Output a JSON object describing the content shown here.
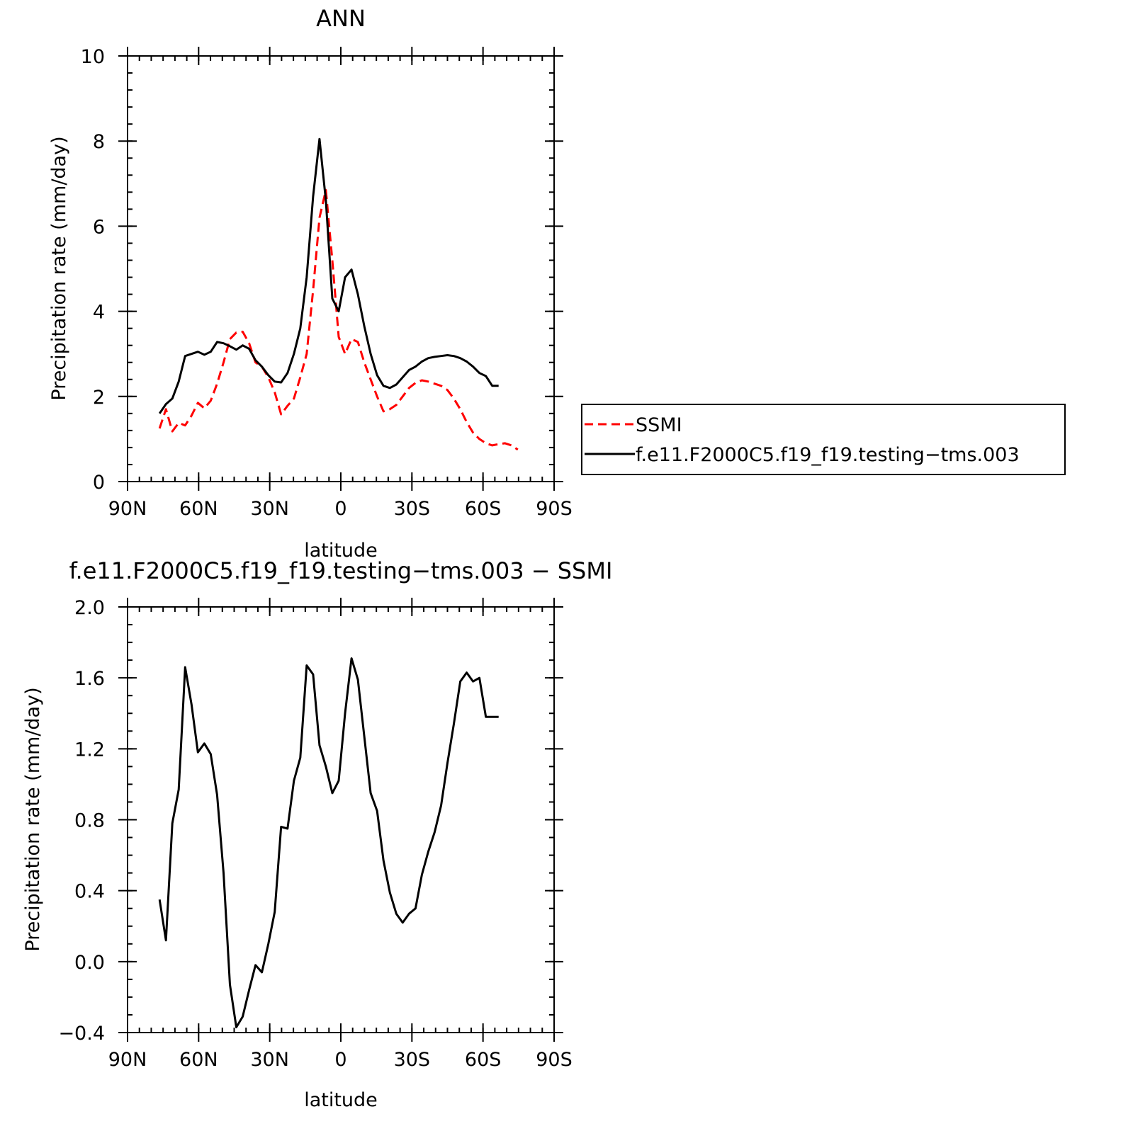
{
  "chart_data": [
    {
      "type": "line",
      "title": "ANN",
      "xlabel": "latitude",
      "ylabel": "Precipitation rate (mm/day)",
      "xlim": [
        -90,
        90
      ],
      "ylim": [
        0,
        10
      ],
      "xticks": [
        {
          "value": -90,
          "label": "90N"
        },
        {
          "value": -60,
          "label": "60N"
        },
        {
          "value": -30,
          "label": "30N"
        },
        {
          "value": 0,
          "label": "0"
        },
        {
          "value": 30,
          "label": "30S"
        },
        {
          "value": 60,
          "label": "60S"
        },
        {
          "value": 90,
          "label": "90S"
        }
      ],
      "yticks": [
        {
          "value": 0,
          "label": "0"
        },
        {
          "value": 2,
          "label": "2"
        },
        {
          "value": 4,
          "label": "4"
        },
        {
          "value": 6,
          "label": "6"
        },
        {
          "value": 8,
          "label": "8"
        },
        {
          "value": 10,
          "label": "10"
        }
      ],
      "x_minor_step": 5,
      "y_minor_step": 0.4,
      "grid": false,
      "legend": {
        "position": "right",
        "entries": [
          "SSMI",
          "f.e11.F2000C5.f19_f19.testing−tms.003"
        ]
      },
      "series": [
        {
          "name": "SSMI",
          "color": "#ff0000",
          "style": "dashed",
          "x": [
            -76.5,
            -73.8,
            -71.1,
            -68.4,
            -65.7,
            -63.0,
            -60.3,
            -57.6,
            -54.9,
            -52.2,
            -49.5,
            -46.8,
            -44.1,
            -41.4,
            -38.7,
            -36.0,
            -33.3,
            -30.6,
            -27.9,
            -25.2,
            -22.5,
            -19.8,
            -17.1,
            -14.4,
            -11.7,
            -9.0,
            -6.3,
            -3.6,
            -0.9,
            1.8,
            4.5,
            7.2,
            9.9,
            12.6,
            15.3,
            18.0,
            20.7,
            23.4,
            26.1,
            28.8,
            31.5,
            34.2,
            36.9,
            39.6,
            42.3,
            45.0,
            47.7,
            50.4,
            53.1,
            55.8,
            58.5,
            61.2,
            63.9,
            66.6,
            69.3,
            72.0,
            74.7
          ],
          "values": [
            1.25,
            1.7,
            1.18,
            1.38,
            1.32,
            1.55,
            1.85,
            1.72,
            1.9,
            2.3,
            2.8,
            3.35,
            3.5,
            3.52,
            3.25,
            2.8,
            2.7,
            2.45,
            2.1,
            1.58,
            1.78,
            1.95,
            2.45,
            3.0,
            4.5,
            6.2,
            6.85,
            5.2,
            3.4,
            3.0,
            3.35,
            3.28,
            2.8,
            2.4,
            2.0,
            1.65,
            1.7,
            1.8,
            2.0,
            2.2,
            2.32,
            2.38,
            2.35,
            2.3,
            2.25,
            2.15,
            1.95,
            1.7,
            1.4,
            1.15,
            1.0,
            0.9,
            0.85,
            0.88,
            0.9,
            0.85,
            0.75
          ]
        },
        {
          "name": "f.e11.F2000C5.f19_f19.testing−tms.003",
          "color": "#000000",
          "style": "solid",
          "x": [
            -76.5,
            -73.8,
            -71.1,
            -68.4,
            -65.7,
            -63.0,
            -60.3,
            -57.6,
            -54.9,
            -52.2,
            -49.5,
            -46.8,
            -44.1,
            -41.4,
            -38.7,
            -36.0,
            -33.3,
            -30.6,
            -27.9,
            -25.2,
            -22.5,
            -19.8,
            -17.1,
            -14.4,
            -11.7,
            -9.0,
            -6.3,
            -3.6,
            -0.9,
            1.8,
            4.5,
            7.2,
            9.9,
            12.6,
            15.3,
            18.0,
            20.7,
            23.4,
            26.1,
            28.8,
            31.5,
            34.2,
            36.9,
            39.6,
            42.3,
            45.0,
            47.7,
            50.4,
            53.1,
            55.8,
            58.5,
            61.2,
            63.9,
            66.6
          ],
          "values": [
            1.6,
            1.82,
            1.95,
            2.35,
            2.95,
            3.0,
            3.05,
            2.98,
            3.05,
            3.28,
            3.25,
            3.18,
            3.1,
            3.2,
            3.12,
            2.85,
            2.7,
            2.5,
            2.35,
            2.33,
            2.55,
            3.0,
            3.6,
            4.8,
            6.7,
            8.05,
            6.6,
            4.3,
            4.0,
            4.8,
            4.98,
            4.4,
            3.65,
            3.0,
            2.5,
            2.25,
            2.2,
            2.28,
            2.45,
            2.62,
            2.7,
            2.82,
            2.9,
            2.93,
            2.95,
            2.97,
            2.95,
            2.9,
            2.82,
            2.7,
            2.55,
            2.48,
            2.25,
            2.25
          ]
        }
      ]
    },
    {
      "type": "line",
      "title": "f.e11.F2000C5.f19_f19.testing−tms.003  −  SSMI",
      "xlabel": "latitude",
      "ylabel": "Precipitation rate (mm/day)",
      "xlim": [
        -90,
        90
      ],
      "ylim": [
        -0.4,
        2.0
      ],
      "xticks": [
        {
          "value": -90,
          "label": "90N"
        },
        {
          "value": -60,
          "label": "60N"
        },
        {
          "value": -30,
          "label": "30N"
        },
        {
          "value": 0,
          "label": "0"
        },
        {
          "value": 30,
          "label": "30S"
        },
        {
          "value": 60,
          "label": "60S"
        },
        {
          "value": 90,
          "label": "90S"
        }
      ],
      "yticks": [
        {
          "value": -0.4,
          "label": "−0.4"
        },
        {
          "value": 0.0,
          "label": "0.0"
        },
        {
          "value": 0.4,
          "label": "0.4"
        },
        {
          "value": 0.8,
          "label": "0.8"
        },
        {
          "value": 1.2,
          "label": "1.2"
        },
        {
          "value": 1.6,
          "label": "1.6"
        },
        {
          "value": 2.0,
          "label": "2.0"
        }
      ],
      "x_minor_step": 5,
      "y_minor_step": 0.1,
      "grid": false,
      "series": [
        {
          "color": "#000000",
          "style": "solid",
          "x": [
            -76.5,
            -73.8,
            -71.1,
            -68.4,
            -65.7,
            -63.0,
            -60.3,
            -57.6,
            -54.9,
            -52.2,
            -49.5,
            -46.8,
            -44.1,
            -41.4,
            -38.7,
            -36.0,
            -33.3,
            -30.6,
            -27.9,
            -25.2,
            -22.5,
            -19.8,
            -17.1,
            -14.4,
            -11.7,
            -9.0,
            -6.3,
            -3.6,
            -0.9,
            1.8,
            4.5,
            7.2,
            9.9,
            12.6,
            15.3,
            18.0,
            20.7,
            23.4,
            26.1,
            28.8,
            31.5,
            34.2,
            36.9,
            39.6,
            42.3,
            45.0,
            47.7,
            50.4,
            53.1,
            55.8,
            58.5,
            61.2,
            63.9,
            66.6
          ],
          "values": [
            0.35,
            0.12,
            0.78,
            0.97,
            1.66,
            1.45,
            1.18,
            1.23,
            1.17,
            0.94,
            0.5,
            -0.13,
            -0.37,
            -0.31,
            -0.16,
            -0.02,
            -0.06,
            0.1,
            0.28,
            0.76,
            0.75,
            1.02,
            1.15,
            1.67,
            1.62,
            1.22,
            1.1,
            0.95,
            1.02,
            1.4,
            1.71,
            1.59,
            1.27,
            0.95,
            0.85,
            0.57,
            0.39,
            0.27,
            0.22,
            0.27,
            0.3,
            0.49,
            0.62,
            0.73,
            0.88,
            1.12,
            1.34,
            1.58,
            1.63,
            1.58,
            1.6,
            1.38,
            1.38,
            1.38
          ]
        }
      ]
    }
  ]
}
